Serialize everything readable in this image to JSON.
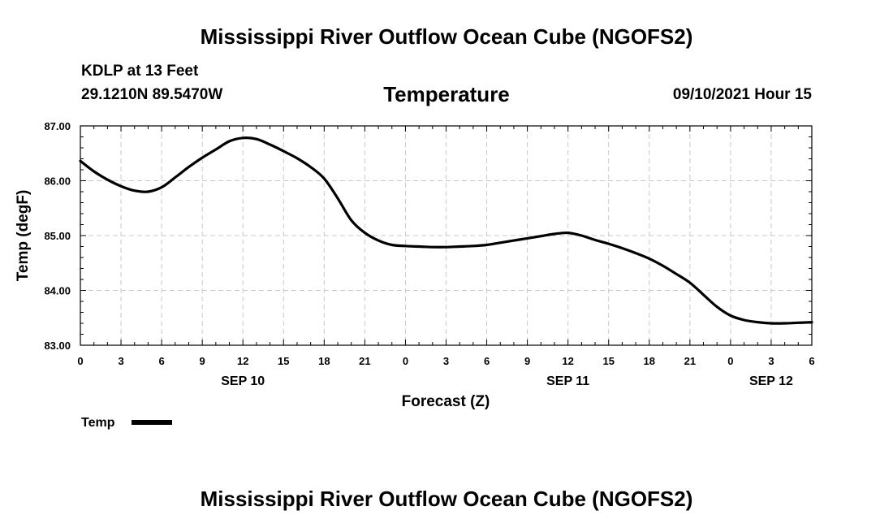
{
  "header": {
    "title": "Mississippi River Outflow Ocean Cube (NGOFS2)",
    "station": "KDLP at 13 Feet",
    "coords": "29.1210N  89.5470W",
    "variable": "Temperature",
    "datetime": "09/10/2021 Hour 15"
  },
  "footer": {
    "title": "Mississippi River Outflow Ocean Cube (NGOFS2)"
  },
  "chart_data": {
    "type": "line",
    "title": "Temperature",
    "xlabel": "Forecast (Z)",
    "ylabel": "Temp (degF)",
    "xlim": [
      0,
      54
    ],
    "ylim": [
      83.0,
      87.0
    ],
    "grid": true,
    "x_ticks": [
      0,
      3,
      6,
      9,
      12,
      15,
      18,
      21,
      24,
      27,
      30,
      33,
      36,
      39,
      42,
      45,
      48,
      51,
      54
    ],
    "x_tick_labels": [
      "0",
      "3",
      "6",
      "9",
      "12",
      "15",
      "18",
      "21",
      "0",
      "3",
      "6",
      "9",
      "12",
      "15",
      "18",
      "21",
      "0",
      "3",
      "6"
    ],
    "y_ticks": [
      83.0,
      84.0,
      85.0,
      86.0,
      87.0
    ],
    "y_tick_labels": [
      "83.00",
      "84.00",
      "85.00",
      "86.00",
      "87.00"
    ],
    "date_labels": [
      {
        "label": "SEP 10",
        "hour": 12
      },
      {
        "label": "SEP 11",
        "hour": 36
      },
      {
        "label": "SEP 12",
        "hour": 51
      }
    ],
    "legend": {
      "position": "bottom-left",
      "entries": [
        "Temp"
      ]
    },
    "series": [
      {
        "name": "Temp",
        "color": "#000000",
        "x": [
          0,
          1,
          2,
          3,
          4,
          5,
          6,
          7,
          8,
          9,
          10,
          11,
          12,
          13,
          14,
          15,
          16,
          17,
          18,
          19,
          20,
          21,
          22,
          23,
          24,
          25,
          26,
          27,
          28,
          29,
          30,
          31,
          32,
          33,
          34,
          35,
          36,
          37,
          38,
          39,
          40,
          41,
          42,
          43,
          44,
          45,
          46,
          47,
          48,
          49,
          50,
          51,
          52,
          53,
          54
        ],
        "values": [
          86.36,
          86.17,
          86.02,
          85.9,
          85.82,
          85.8,
          85.88,
          86.06,
          86.25,
          86.42,
          86.57,
          86.72,
          86.78,
          86.76,
          86.66,
          86.54,
          86.41,
          86.25,
          86.04,
          85.68,
          85.28,
          85.05,
          84.91,
          84.83,
          84.81,
          84.8,
          84.79,
          84.79,
          84.8,
          84.81,
          84.83,
          84.87,
          84.91,
          84.95,
          84.99,
          85.03,
          85.05,
          85.0,
          84.92,
          84.85,
          84.77,
          84.68,
          84.58,
          84.45,
          84.3,
          84.14,
          83.92,
          83.7,
          83.54,
          83.46,
          83.42,
          83.4,
          83.4,
          83.41,
          83.42
        ]
      }
    ]
  }
}
